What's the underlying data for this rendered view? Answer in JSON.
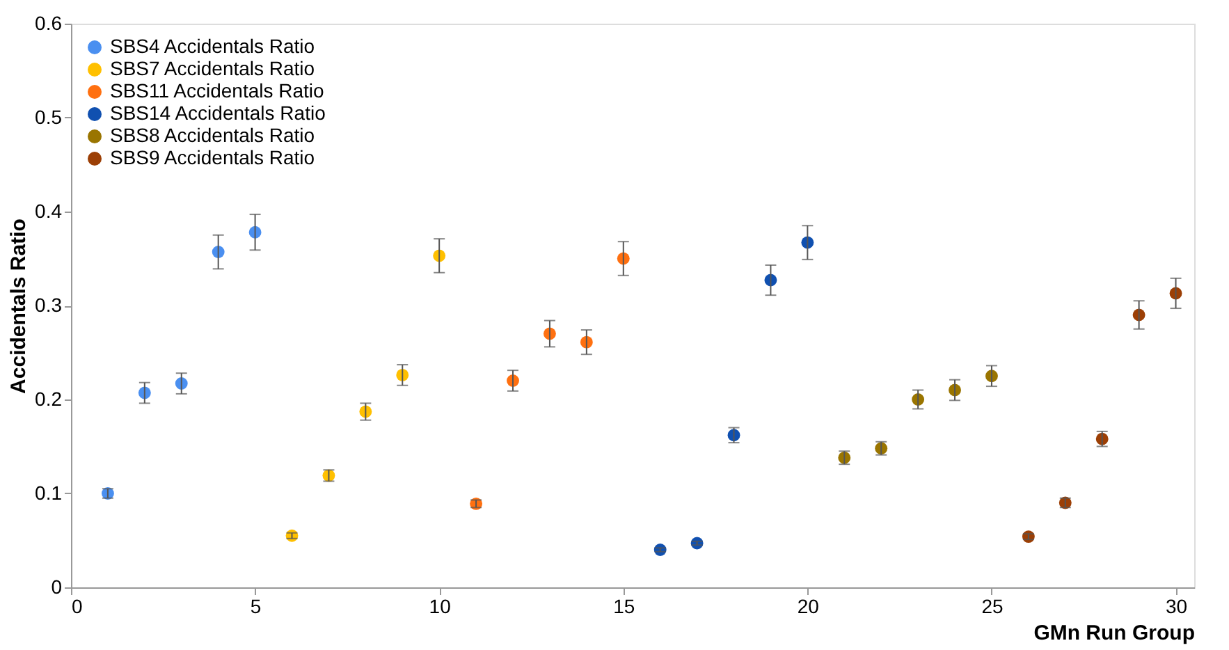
{
  "chart_data": {
    "type": "scatter",
    "xlabel": "GMn Run Group",
    "ylabel": "Accidentals Ratio",
    "xlim": [
      0,
      30.5
    ],
    "xticks": [
      0,
      5,
      10,
      15,
      20,
      25,
      30
    ],
    "ylim": [
      0,
      0.6
    ],
    "yticks": [
      0,
      0.1,
      0.2,
      0.3,
      0.4,
      0.5,
      0.6
    ],
    "grid": false,
    "legend": "top left",
    "marker": "circle",
    "series": [
      {
        "name": "SBS4 Accidentals Ratio",
        "color": "#4a8ff0",
        "x": [
          1,
          2,
          3,
          4,
          5
        ],
        "values": [
          0.1,
          0.207,
          0.217,
          0.357,
          0.378
        ],
        "errors": [
          0.005,
          0.011,
          0.011,
          0.018,
          0.019
        ]
      },
      {
        "name": "SBS7 Accidentals Ratio",
        "color": "#ffc000",
        "x": [
          6,
          7,
          8,
          9,
          10
        ],
        "values": [
          0.055,
          0.119,
          0.187,
          0.226,
          0.353
        ],
        "errors": [
          0.003,
          0.006,
          0.009,
          0.011,
          0.018
        ]
      },
      {
        "name": "SBS11 Accidentals Ratio",
        "color": "#ff7010",
        "x": [
          11,
          12,
          13,
          14,
          15
        ],
        "values": [
          0.089,
          0.22,
          0.27,
          0.261,
          0.35
        ],
        "errors": [
          0.004,
          0.011,
          0.014,
          0.013,
          0.018
        ]
      },
      {
        "name": "SBS14 Accidentals Ratio",
        "color": "#1050b0",
        "x": [
          16,
          17,
          18,
          19,
          20
        ],
        "values": [
          0.04,
          0.047,
          0.162,
          0.327,
          0.367
        ],
        "errors": [
          0.002,
          0.002,
          0.008,
          0.016,
          0.018
        ]
      },
      {
        "name": "SBS8 Accidentals Ratio",
        "color": "#9a7500",
        "x": [
          21,
          22,
          23,
          24,
          25
        ],
        "values": [
          0.138,
          0.148,
          0.2,
          0.21,
          0.225
        ],
        "errors": [
          0.007,
          0.007,
          0.01,
          0.011,
          0.011
        ]
      },
      {
        "name": "SBS9 Accidentals Ratio",
        "color": "#9c3f05",
        "x": [
          26,
          27,
          28,
          29,
          30
        ],
        "values": [
          0.054,
          0.09,
          0.158,
          0.29,
          0.313
        ],
        "errors": [
          0.003,
          0.005,
          0.008,
          0.015,
          0.016
        ]
      }
    ]
  }
}
